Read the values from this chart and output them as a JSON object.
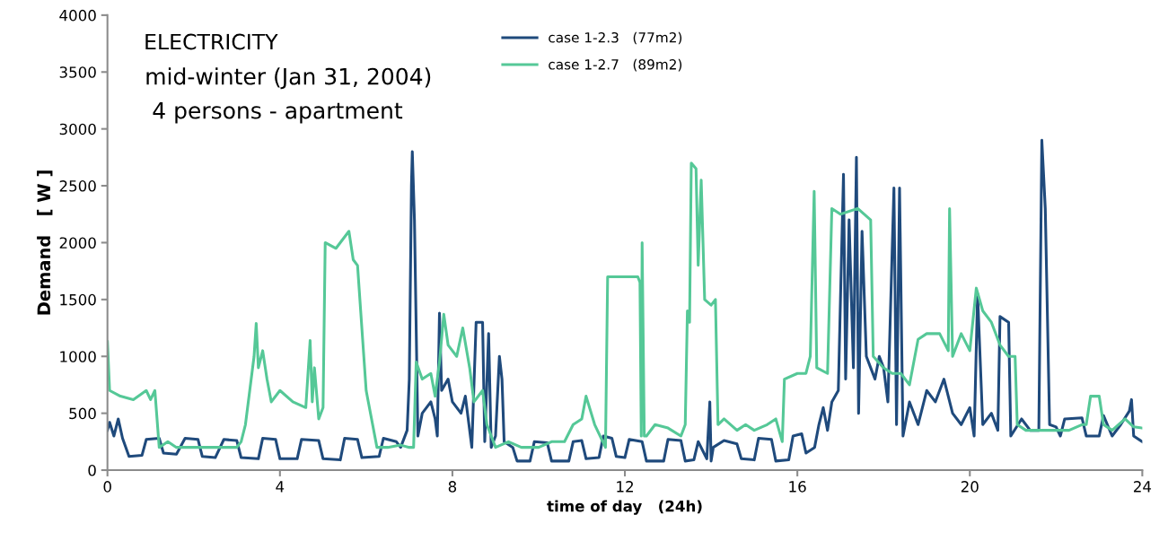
{
  "chart_data": {
    "type": "line",
    "title": "ELECTRICITY",
    "subtitle": "mid-winter (Jan 31, 2004)",
    "annotations": [
      "4 persons - apartment"
    ],
    "xlabel": "time of day   (24h)",
    "ylabel": "Demand   [ W ]",
    "xlim": [
      0,
      24
    ],
    "xticks": [
      0,
      4,
      8,
      12,
      16,
      20,
      24
    ],
    "ylim": [
      0,
      4000
    ],
    "yticks": [
      0,
      500,
      1000,
      1500,
      2000,
      2500,
      3000,
      3500,
      4000
    ],
    "grid": false,
    "legend": "top",
    "marker": "none",
    "line_style": "solid",
    "series": [
      {
        "name": "case 1-2.3   (77m2)",
        "color": "#1f4a7c",
        "x": [
          0,
          0.05,
          0.15,
          0.25,
          0.35,
          0.5,
          0.8,
          0.9,
          1.2,
          1.3,
          1.6,
          1.8,
          2.1,
          2.2,
          2.5,
          2.7,
          3.0,
          3.1,
          3.5,
          3.6,
          3.9,
          4.0,
          4.4,
          4.5,
          4.9,
          5.0,
          5.4,
          5.5,
          5.8,
          5.9,
          6.3,
          6.4,
          6.7,
          6.8,
          6.95,
          7.0,
          7.05,
          7.07,
          7.12,
          7.2,
          7.3,
          7.5,
          7.6,
          7.65,
          7.7,
          7.75,
          7.9,
          8.0,
          8.2,
          8.3,
          8.45,
          8.55,
          8.7,
          8.75,
          8.84,
          8.9,
          9.0,
          9.09,
          9.15,
          9.2,
          9.4,
          9.5,
          9.8,
          9.9,
          10.2,
          10.3,
          10.7,
          10.8,
          11.0,
          11.1,
          11.4,
          11.5,
          11.7,
          11.8,
          12.0,
          12.1,
          12.4,
          12.5,
          12.9,
          13.0,
          13.3,
          13.4,
          13.6,
          13.7,
          13.9,
          13.97,
          14.0,
          14.05,
          14.3,
          14.6,
          14.7,
          15.0,
          15.1,
          15.4,
          15.5,
          15.8,
          15.9,
          16.1,
          16.2,
          16.4,
          16.5,
          16.6,
          16.7,
          16.8,
          16.95,
          17.0,
          17.07,
          17.12,
          17.2,
          17.3,
          17.37,
          17.42,
          17.5,
          17.6,
          17.7,
          17.8,
          17.9,
          18.0,
          18.1,
          18.24,
          18.3,
          18.37,
          18.45,
          18.6,
          18.8,
          19.0,
          19.2,
          19.4,
          19.6,
          19.8,
          20.0,
          20.1,
          20.18,
          20.3,
          20.5,
          20.65,
          20.7,
          20.9,
          20.95,
          21.2,
          21.4,
          21.6,
          21.67,
          21.75,
          21.85,
          22.0,
          22.1,
          22.2,
          22.6,
          22.7,
          23.0,
          23.1,
          23.3,
          23.5,
          23.7,
          23.75,
          23.8,
          24.0
        ],
        "values": [
          350,
          420,
          300,
          450,
          280,
          120,
          130,
          270,
          280,
          150,
          140,
          280,
          270,
          120,
          110,
          270,
          260,
          110,
          100,
          280,
          270,
          100,
          100,
          270,
          260,
          100,
          90,
          280,
          270,
          110,
          120,
          280,
          250,
          200,
          350,
          800,
          2500,
          2800,
          2200,
          300,
          500,
          600,
          450,
          300,
          1380,
          700,
          800,
          600,
          500,
          650,
          200,
          1300,
          1300,
          250,
          1200,
          200,
          300,
          1000,
          800,
          250,
          200,
          80,
          80,
          250,
          240,
          80,
          80,
          250,
          260,
          100,
          110,
          300,
          280,
          120,
          110,
          270,
          250,
          80,
          80,
          270,
          260,
          80,
          90,
          250,
          100,
          600,
          80,
          200,
          260,
          230,
          100,
          90,
          280,
          270,
          80,
          90,
          300,
          320,
          150,
          200,
          400,
          550,
          350,
          600,
          700,
          1500,
          2600,
          800,
          2200,
          900,
          2750,
          500,
          2100,
          1000,
          900,
          800,
          1000,
          900,
          600,
          2480,
          400,
          2480,
          300,
          600,
          400,
          700,
          600,
          800,
          500,
          400,
          550,
          300,
          1550,
          400,
          500,
          350,
          1350,
          1300,
          300,
          450,
          350,
          350,
          2900,
          2300,
          400,
          380,
          300,
          450,
          460,
          300,
          300,
          480,
          300,
          400,
          520,
          620,
          300,
          250
        ]
      },
      {
        "name": "case 1-2.7   (89m2)",
        "color": "#55c897",
        "x": [
          0,
          0.05,
          0.3,
          0.6,
          0.9,
          1.0,
          1.1,
          1.2,
          1.4,
          1.6,
          2.0,
          2.5,
          3.0,
          3.1,
          3.2,
          3.3,
          3.4,
          3.45,
          3.5,
          3.6,
          3.7,
          3.8,
          4.0,
          4.3,
          4.6,
          4.7,
          4.75,
          4.8,
          4.9,
          5.0,
          5.05,
          5.3,
          5.6,
          5.7,
          5.8,
          6.0,
          6.05,
          6.25,
          6.5,
          6.8,
          7.0,
          7.1,
          7.16,
          7.3,
          7.5,
          7.6,
          7.7,
          7.8,
          7.9,
          8.1,
          8.24,
          8.4,
          8.5,
          8.7,
          8.8,
          8.9,
          9.0,
          9.3,
          9.6,
          10.0,
          10.3,
          10.6,
          10.8,
          11.0,
          11.1,
          11.3,
          11.55,
          11.6,
          11.8,
          12.1,
          12.3,
          12.35,
          12.38,
          12.4,
          12.45,
          12.5,
          12.7,
          13.0,
          13.3,
          13.4,
          13.45,
          13.5,
          13.54,
          13.65,
          13.7,
          13.77,
          13.85,
          14.0,
          14.1,
          14.16,
          14.3,
          14.6,
          14.8,
          15.0,
          15.3,
          15.5,
          15.65,
          15.7,
          16.0,
          16.2,
          16.3,
          16.39,
          16.45,
          16.7,
          16.8,
          17.0,
          17.4,
          17.7,
          17.76,
          18.0,
          18.2,
          18.4,
          18.6,
          18.8,
          19.0,
          19.3,
          19.5,
          19.53,
          19.6,
          19.8,
          20.0,
          20.15,
          20.3,
          20.5,
          20.7,
          20.9,
          21.05,
          21.1,
          21.3,
          21.6,
          22.0,
          22.3,
          22.6,
          22.7,
          22.8,
          23.0,
          23.1,
          23.3,
          23.6,
          23.8,
          24.0
        ],
        "values": [
          1130,
          700,
          650,
          620,
          700,
          620,
          700,
          200,
          250,
          200,
          200,
          200,
          200,
          250,
          400,
          700,
          1000,
          1290,
          900,
          1050,
          800,
          600,
          700,
          600,
          550,
          1140,
          600,
          900,
          450,
          550,
          2000,
          1950,
          2100,
          1850,
          1800,
          700,
          600,
          200,
          200,
          220,
          200,
          200,
          950,
          800,
          850,
          650,
          950,
          1370,
          1100,
          1000,
          1250,
          900,
          600,
          700,
          400,
          300,
          200,
          250,
          200,
          200,
          250,
          250,
          400,
          450,
          650,
          400,
          200,
          1700,
          1700,
          1700,
          1700,
          1650,
          300,
          2000,
          300,
          300,
          400,
          370,
          300,
          400,
          1400,
          1300,
          2700,
          2650,
          1800,
          2550,
          1500,
          1450,
          1500,
          400,
          450,
          350,
          400,
          350,
          400,
          450,
          250,
          800,
          850,
          850,
          1000,
          2450,
          900,
          850,
          2300,
          2250,
          2300,
          2200,
          1000,
          900,
          850,
          850,
          750,
          1150,
          1200,
          1200,
          1050,
          2300,
          1000,
          1200,
          1050,
          1600,
          1400,
          1300,
          1100,
          1000,
          1000,
          400,
          350,
          350,
          350,
          350,
          400,
          400,
          650,
          650,
          400,
          350,
          450,
          380,
          370
        ]
      }
    ]
  }
}
